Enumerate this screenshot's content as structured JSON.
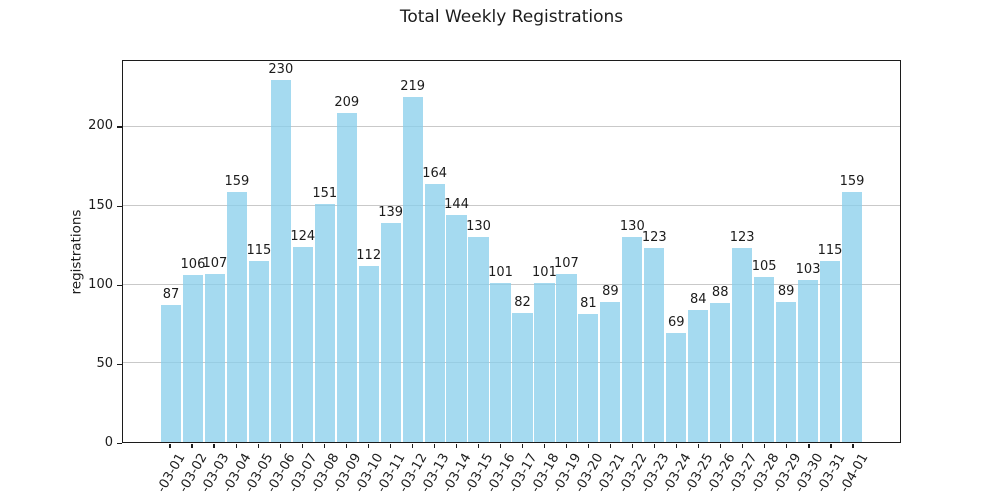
{
  "chart_data": {
    "type": "bar",
    "title": "Total Weekly Registrations",
    "xlabel": "",
    "ylabel": "registrations",
    "categories": [
      "-03-01",
      "-03-02",
      "-03-03",
      "-03-04",
      "-03-05",
      "-03-06",
      "-03-07",
      "-03-08",
      "-03-09",
      "-03-10",
      "-03-11",
      "-03-12",
      "-03-13",
      "-03-14",
      "-03-15",
      "-03-16",
      "-03-17",
      "-03-18",
      "-03-19",
      "-03-20",
      "-03-21",
      "-03-22",
      "-03-23",
      "-03-24",
      "-03-25",
      "-03-26",
      "-03-27",
      "-03-28",
      "-03-29",
      "-03-30",
      "-03-31",
      "-04-01"
    ],
    "values": [
      87,
      106,
      107,
      159,
      115,
      230,
      124,
      151,
      209,
      112,
      139,
      219,
      164,
      144,
      130,
      101,
      82,
      101,
      107,
      81,
      89,
      130,
      123,
      69,
      84,
      88,
      123,
      105,
      89,
      103,
      115,
      159
    ],
    "yticks": [
      0,
      50,
      100,
      150,
      200
    ],
    "ylim": [
      0,
      242
    ],
    "grid": "y",
    "legend_position": "none",
    "value_labels_shown": true,
    "bar_color": "#87ceeb",
    "bar_alpha": 0.75,
    "grid_color": "#c9c9c9",
    "text_color": "#1c1c1c",
    "background_color": "#ffffff"
  }
}
